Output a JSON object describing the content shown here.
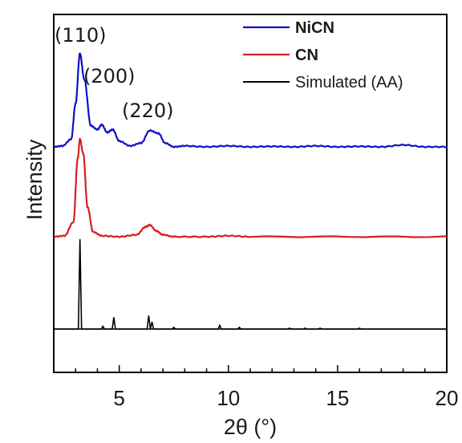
{
  "chart_data": {
    "type": "line",
    "xlabel": "2θ (°)",
    "ylabel": "Intensity",
    "xlim": [
      2,
      20
    ],
    "xticks": [
      5,
      10,
      15,
      20
    ],
    "tick_labels": [
      "5",
      "10",
      "15",
      "20"
    ],
    "peak_annotations": [
      "(110)",
      "(200)",
      "(220)"
    ],
    "legend": {
      "placement": "top-right",
      "entries": [
        "NiCN",
        "CN",
        "Simulated (AA)"
      ]
    },
    "series": [
      {
        "name": "NiCN",
        "color": "#1010c8",
        "points": [
          [
            2,
            0.0
          ],
          [
            2.4,
            0.01
          ],
          [
            2.8,
            0.08
          ],
          [
            3.0,
            0.45
          ],
          [
            3.2,
            0.97
          ],
          [
            3.4,
            0.7
          ],
          [
            3.7,
            0.22
          ],
          [
            4.0,
            0.18
          ],
          [
            4.2,
            0.23
          ],
          [
            4.45,
            0.15
          ],
          [
            4.7,
            0.18
          ],
          [
            5.0,
            0.06
          ],
          [
            5.5,
            0.01
          ],
          [
            6.0,
            0.04
          ],
          [
            6.4,
            0.17
          ],
          [
            6.8,
            0.14
          ],
          [
            7.1,
            0.04
          ],
          [
            7.5,
            0.0
          ],
          [
            8,
            0.01
          ],
          [
            9,
            0.0
          ],
          [
            10,
            0.01
          ],
          [
            11,
            0.0
          ],
          [
            12,
            0.005
          ],
          [
            13,
            0.0
          ],
          [
            14,
            0.01
          ],
          [
            15,
            0.0
          ],
          [
            16,
            0.005
          ],
          [
            17,
            0.0
          ],
          [
            18,
            0.02
          ],
          [
            19,
            0.0
          ],
          [
            20,
            0.0
          ]
        ]
      },
      {
        "name": "CN",
        "color": "#d42020",
        "points": [
          [
            2,
            0.0
          ],
          [
            2.5,
            0.01
          ],
          [
            2.9,
            0.15
          ],
          [
            3.1,
            0.8
          ],
          [
            3.2,
            1.0
          ],
          [
            3.35,
            0.85
          ],
          [
            3.55,
            0.3
          ],
          [
            3.8,
            0.05
          ],
          [
            4.2,
            0.01
          ],
          [
            5,
            0.0
          ],
          [
            5.8,
            0.02
          ],
          [
            6.2,
            0.1
          ],
          [
            6.4,
            0.12
          ],
          [
            6.7,
            0.06
          ],
          [
            7.0,
            0.02
          ],
          [
            7.5,
            0.0
          ],
          [
            9,
            0.0
          ],
          [
            10,
            0.01
          ],
          [
            11,
            0.0
          ],
          [
            20,
            0.0
          ]
        ]
      },
      {
        "name": "Simulated (AA)",
        "color": "#000000",
        "peaks": [
          [
            3.2,
            1.0
          ],
          [
            4.25,
            0.03
          ],
          [
            4.75,
            0.13
          ],
          [
            6.35,
            0.15
          ],
          [
            6.5,
            0.08
          ],
          [
            7.5,
            0.02
          ],
          [
            9.6,
            0.04
          ],
          [
            10.5,
            0.02
          ],
          [
            12.8,
            0.01
          ],
          [
            13.5,
            0.01
          ],
          [
            14.2,
            0.01
          ],
          [
            16.0,
            0.01
          ]
        ]
      }
    ]
  }
}
